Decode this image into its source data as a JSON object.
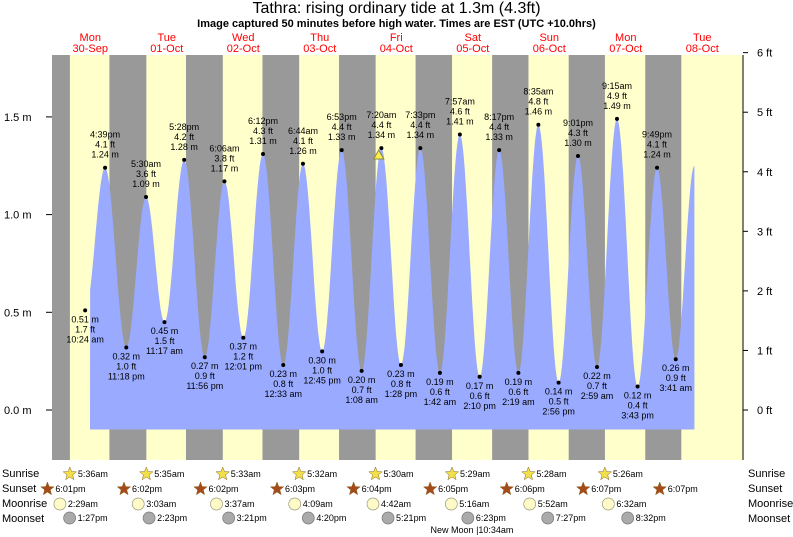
{
  "title": "Tathra: rising  ordinary tide at 1.3m (4.3ft)",
  "subtitle": "Image captured 50 minutes before high water. Times are EST (UTC +10.0hrs)",
  "colors": {
    "night": "#999999",
    "day": "#ffffcc",
    "tide_fill": "#99aaff",
    "date_text": "#ff0000",
    "sun": "#f2e04a",
    "sunset": "#a64a1a",
    "moonrise": "#fffbc8",
    "moonset": "#aaaaaa"
  },
  "days": [
    {
      "day": "Mon",
      "date": "30-Sep"
    },
    {
      "day": "Tue",
      "date": "01-Oct"
    },
    {
      "day": "Wed",
      "date": "02-Oct"
    },
    {
      "day": "Thu",
      "date": "03-Oct"
    },
    {
      "day": "Fri",
      "date": "04-Oct"
    },
    {
      "day": "Sat",
      "date": "05-Oct"
    },
    {
      "day": "Sun",
      "date": "06-Oct"
    },
    {
      "day": "Mon",
      "date": "07-Oct"
    },
    {
      "day": "Tue",
      "date": "08-Oct"
    }
  ],
  "chart_data": {
    "type": "area",
    "title": "Tathra: rising  ordinary tide at 1.3m (4.3ft)",
    "subtitle": "Image captured 50 minutes before high water. Times are EST (UTC +10.0hrs)",
    "y_left_ticks": [
      "0.0 m",
      "0.5 m",
      "1.0 m",
      "1.5 m"
    ],
    "y_left_values": [
      0.0,
      0.5,
      1.0,
      1.5
    ],
    "y_right_ticks": [
      "0 ft",
      "1 ft",
      "2 ft",
      "3 ft",
      "4 ft",
      "5 ft",
      "6 ft"
    ],
    "y_right_values": [
      0,
      1,
      2,
      3,
      4,
      5,
      6
    ],
    "ylim_m": [
      -0.2,
      1.86
    ],
    "current": {
      "day": 4,
      "time": "6:30",
      "height_m": 1.3
    },
    "extremes": [
      {
        "day": 0,
        "time": "10:24 am",
        "m": 0.51,
        "ft": "1.7 ft",
        "m_label": "0.51 m",
        "type": "low"
      },
      {
        "day": 0,
        "time": "4:39 pm",
        "m": 1.24,
        "ft": "4.1 ft",
        "m_label": "1.24 m",
        "type": "high"
      },
      {
        "day": 0,
        "time": "11:18 pm",
        "m": 0.32,
        "ft": "1.0 ft",
        "m_label": "0.32 m",
        "type": "low"
      },
      {
        "day": 1,
        "time": "5:30 am",
        "m": 1.09,
        "ft": "3.6 ft",
        "m_label": "1.09 m",
        "type": "high"
      },
      {
        "day": 1,
        "time": "11:17 am",
        "m": 0.45,
        "ft": "1.5 ft",
        "m_label": "0.45 m",
        "type": "low"
      },
      {
        "day": 1,
        "time": "5:28 pm",
        "m": 1.28,
        "ft": "4.2 ft",
        "m_label": "1.28 m",
        "type": "high"
      },
      {
        "day": 1,
        "time": "11:56 pm",
        "m": 0.27,
        "ft": "0.9 ft",
        "m_label": "0.27 m",
        "type": "low"
      },
      {
        "day": 2,
        "time": "6:06 am",
        "m": 1.17,
        "ft": "3.8 ft",
        "m_label": "1.17 m",
        "type": "high"
      },
      {
        "day": 2,
        "time": "12:01 pm",
        "m": 0.37,
        "ft": "1.2 ft",
        "m_label": "0.37 m",
        "type": "low"
      },
      {
        "day": 2,
        "time": "6:12 pm",
        "m": 1.31,
        "ft": "4.3 ft",
        "m_label": "1.31 m",
        "type": "high"
      },
      {
        "day": 3,
        "time": "12:33 am",
        "m": 0.23,
        "ft": "0.8 ft",
        "m_label": "0.23 m",
        "type": "low"
      },
      {
        "day": 3,
        "time": "6:44 am",
        "m": 1.26,
        "ft": "4.1 ft",
        "m_label": "1.26 m",
        "type": "high"
      },
      {
        "day": 3,
        "time": "12:45 pm",
        "m": 0.3,
        "ft": "1.0 ft",
        "m_label": "0.30 m",
        "type": "low"
      },
      {
        "day": 3,
        "time": "6:53 pm",
        "m": 1.33,
        "ft": "4.4 ft",
        "m_label": "1.33 m",
        "type": "high"
      },
      {
        "day": 4,
        "time": "1:08 am",
        "m": 0.2,
        "ft": "0.7 ft",
        "m_label": "0.20 m",
        "type": "low"
      },
      {
        "day": 4,
        "time": "7:20 am",
        "m": 1.34,
        "ft": "4.4 ft",
        "m_label": "1.34 m",
        "type": "high"
      },
      {
        "day": 4,
        "time": "1:28 pm",
        "m": 0.23,
        "ft": "0.8 ft",
        "m_label": "0.23 m",
        "type": "low"
      },
      {
        "day": 4,
        "time": "7:33 pm",
        "m": 1.34,
        "ft": "4.4 ft",
        "m_label": "1.34 m",
        "type": "high"
      },
      {
        "day": 5,
        "time": "1:42 am",
        "m": 0.19,
        "ft": "0.6 ft",
        "m_label": "0.19 m",
        "type": "low"
      },
      {
        "day": 5,
        "time": "7:57 am",
        "m": 1.41,
        "ft": "4.6 ft",
        "m_label": "1.41 m",
        "type": "high"
      },
      {
        "day": 5,
        "time": "2:10 pm",
        "m": 0.17,
        "ft": "0.6 ft",
        "m_label": "0.17 m",
        "type": "low"
      },
      {
        "day": 5,
        "time": "8:17 pm",
        "m": 1.33,
        "ft": "4.4 ft",
        "m_label": "1.33 m",
        "type": "high"
      },
      {
        "day": 6,
        "time": "2:19 am",
        "m": 0.19,
        "ft": "0.6 ft",
        "m_label": "0.19 m",
        "type": "low"
      },
      {
        "day": 6,
        "time": "8:35 am",
        "m": 1.46,
        "ft": "4.8 ft",
        "m_label": "1.46 m",
        "type": "high"
      },
      {
        "day": 6,
        "time": "2:56 pm",
        "m": 0.14,
        "ft": "0.5 ft",
        "m_label": "0.14 m",
        "type": "low"
      },
      {
        "day": 6,
        "time": "9:01 pm",
        "m": 1.3,
        "ft": "4.3 ft",
        "m_label": "1.30 m",
        "type": "high"
      },
      {
        "day": 7,
        "time": "2:59 am",
        "m": 0.22,
        "ft": "0.7 ft",
        "m_label": "0.22 m",
        "type": "low"
      },
      {
        "day": 7,
        "time": "9:15 am",
        "m": 1.49,
        "ft": "4.9 ft",
        "m_label": "1.49 m",
        "type": "high"
      },
      {
        "day": 7,
        "time": "3:43 pm",
        "m": 0.12,
        "ft": "0.4 ft",
        "m_label": "0.12 m",
        "type": "low"
      },
      {
        "day": 7,
        "time": "9:49 pm",
        "m": 1.24,
        "ft": "4.1 ft",
        "m_label": "1.24 m",
        "type": "high"
      },
      {
        "day": 8,
        "time": "3:41 am",
        "m": 0.26,
        "ft": "0.9 ft",
        "m_label": "0.26 m",
        "type": "low"
      }
    ],
    "sunrise": [
      "5:36am",
      "5:35am",
      "5:33am",
      "5:32am",
      "5:30am",
      "5:29am",
      "5:28am",
      "5:26am"
    ],
    "sunset": [
      "6:01pm",
      "6:02pm",
      "6:02pm",
      "6:03pm",
      "6:04pm",
      "6:05pm",
      "6:06pm",
      "6:07pm",
      "6:07pm"
    ],
    "moonrise": [
      {
        "day": 0,
        "time": "2:29am"
      },
      {
        "day": 1,
        "time": "3:03am"
      },
      {
        "day": 2,
        "time": "3:37am"
      },
      {
        "day": 3,
        "time": "4:09am"
      },
      {
        "day": 4,
        "time": "4:42am"
      },
      {
        "day": 5,
        "time": "5:16am"
      },
      {
        "day": 6,
        "time": "5:52am"
      },
      {
        "day": 7,
        "time": "6:32am"
      }
    ],
    "moonset": [
      {
        "day": 0,
        "time": "1:27pm"
      },
      {
        "day": 1,
        "time": "2:23pm"
      },
      {
        "day": 2,
        "time": "3:21pm"
      },
      {
        "day": 3,
        "time": "4:20pm"
      },
      {
        "day": 4,
        "time": "5:21pm"
      },
      {
        "day": 5,
        "time": "6:23pm"
      },
      {
        "day": 6,
        "time": "7:27pm"
      },
      {
        "day": 7,
        "time": "8:32pm"
      }
    ],
    "moon_phase": {
      "label": "New Moon",
      "time": "10:34am"
    }
  },
  "row_labels": {
    "sunrise": "Sunrise",
    "sunset": "Sunset",
    "moonrise": "Moonrise",
    "moonset": "Moonset"
  }
}
